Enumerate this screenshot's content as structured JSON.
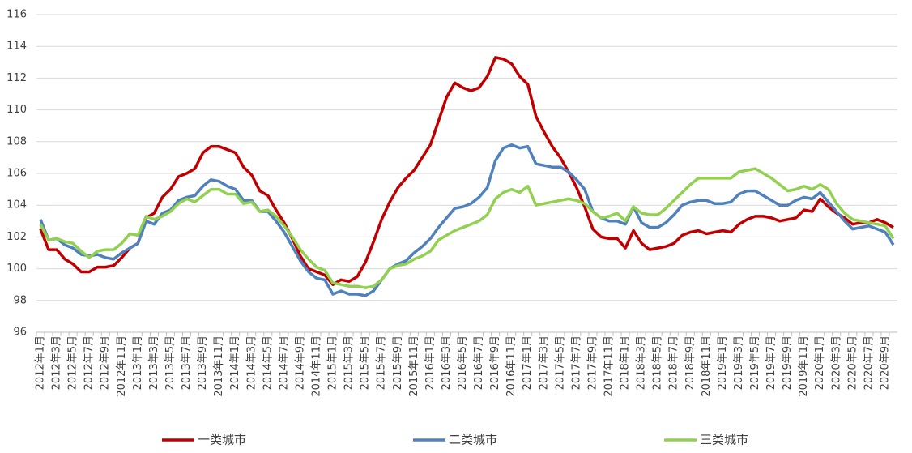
{
  "chart_data": {
    "type": "line",
    "categories": [
      "2012年1月",
      null,
      "2012年3月",
      null,
      "2012年5月",
      null,
      "2012年7月",
      null,
      "2012年9月",
      null,
      "2012年11月",
      null,
      "2013年1月",
      null,
      "2013年3月",
      null,
      "2013年5月",
      null,
      "2013年7月",
      null,
      "2013年9月",
      null,
      "2013年11月",
      null,
      "2014年1月",
      null,
      "2014年3月",
      null,
      "2014年5月",
      null,
      "2014年7月",
      null,
      "2014年9月",
      null,
      "2014年11月",
      null,
      "2015年1月",
      null,
      "2015年3月",
      null,
      "2015年5月",
      null,
      "2015年7月",
      null,
      "2015年9月",
      null,
      "2015年11月",
      null,
      "2016年1月",
      null,
      "2016年3月",
      null,
      "2016年5月",
      null,
      "2016年7月",
      null,
      "2016年9月",
      null,
      "2016年11月",
      null,
      "2017年1月",
      null,
      "2017年3月",
      null,
      "2017年5月",
      null,
      "2017年7月",
      null,
      "2017年9月",
      null,
      "2017年11月",
      null,
      "2018年1月",
      null,
      "2018年3月",
      null,
      "2018年5月",
      null,
      "2018年7月",
      null,
      "2018年9月",
      null,
      "2018年11月",
      null,
      "2019年1月",
      null,
      "2019年3月",
      null,
      "2019年5月",
      null,
      "2019年7月",
      null,
      "2019年9月",
      null,
      "2019年11月",
      null,
      "2020年1月",
      null,
      "2020年3月",
      null,
      "2020年5月",
      null,
      "2020年7月",
      null,
      "2020年9月",
      null
    ],
    "series": [
      {
        "name": "一类城市",
        "color": "#c00000",
        "values": [
          102.5,
          101.2,
          101.2,
          100.6,
          100.3,
          99.8,
          99.8,
          100.1,
          100.1,
          100.2,
          100.7,
          101.3,
          101.6,
          103.2,
          103.5,
          104.5,
          105.0,
          105.8,
          106.0,
          106.3,
          107.3,
          107.7,
          107.7,
          107.5,
          107.3,
          106.4,
          105.9,
          104.9,
          104.6,
          103.7,
          102.9,
          101.9,
          100.8,
          100.0,
          99.8,
          99.6,
          99.0,
          99.3,
          99.2,
          99.5,
          100.4,
          101.7,
          103.1,
          104.2,
          105.1,
          105.7,
          106.2,
          107.0,
          107.8,
          109.3,
          110.8,
          111.7,
          111.4,
          111.2,
          111.4,
          112.1,
          113.3,
          113.2,
          112.9,
          112.1,
          111.6,
          109.6,
          108.6,
          107.7,
          107.0,
          106.1,
          105.1,
          103.9,
          102.5,
          102.0,
          101.9,
          101.9,
          101.3,
          102.4,
          101.6,
          101.2,
          101.3,
          101.4,
          101.6,
          102.1,
          102.3,
          102.4,
          102.2,
          102.3,
          102.4,
          102.3,
          102.8,
          103.1,
          103.3,
          103.3,
          103.2,
          103.0,
          103.1,
          103.2,
          103.7,
          103.6,
          104.4,
          103.9,
          103.5,
          103.2,
          102.8,
          102.9,
          102.9,
          103.1,
          102.9,
          102.6
        ]
      },
      {
        "name": "二类城市",
        "color": "#4f81bd",
        "values": [
          103.1,
          101.8,
          101.9,
          101.5,
          101.3,
          100.9,
          100.8,
          100.9,
          100.7,
          100.6,
          101.0,
          101.3,
          101.6,
          103.0,
          102.8,
          103.5,
          103.7,
          104.3,
          104.5,
          104.6,
          105.2,
          105.6,
          105.5,
          105.2,
          105.0,
          104.3,
          104.3,
          103.6,
          103.6,
          103.0,
          102.3,
          101.4,
          100.5,
          99.8,
          99.4,
          99.3,
          98.4,
          98.6,
          98.4,
          98.4,
          98.3,
          98.6,
          99.3,
          100.0,
          100.3,
          100.5,
          101.0,
          101.4,
          101.9,
          102.6,
          103.2,
          103.8,
          103.9,
          104.1,
          104.5,
          105.1,
          106.8,
          107.6,
          107.8,
          107.6,
          107.7,
          106.6,
          106.5,
          106.4,
          106.4,
          106.1,
          105.6,
          105.0,
          103.6,
          103.2,
          103.0,
          103.0,
          102.8,
          103.9,
          102.9,
          102.6,
          102.6,
          102.9,
          103.4,
          104.0,
          104.2,
          104.3,
          104.3,
          104.1,
          104.1,
          104.2,
          104.7,
          104.9,
          104.9,
          104.6,
          104.3,
          104.0,
          104.0,
          104.3,
          104.5,
          104.4,
          104.8,
          104.2,
          103.6,
          103.0,
          102.5,
          102.6,
          102.7,
          102.5,
          102.3,
          101.5
        ]
      },
      {
        "name": "三类城市",
        "color": "#92d050",
        "values": [
          102.8,
          101.8,
          101.9,
          101.7,
          101.6,
          101.1,
          100.7,
          101.1,
          101.2,
          101.2,
          101.6,
          102.2,
          102.1,
          103.3,
          103.1,
          103.3,
          103.6,
          104.1,
          104.4,
          104.2,
          104.6,
          105.0,
          105.0,
          104.7,
          104.7,
          104.1,
          104.2,
          103.6,
          103.7,
          103.3,
          102.7,
          102.0,
          101.2,
          100.6,
          100.1,
          99.9,
          99.1,
          99.0,
          98.9,
          98.9,
          98.8,
          98.9,
          99.3,
          100.0,
          100.2,
          100.3,
          100.6,
          100.8,
          101.1,
          101.8,
          102.1,
          102.4,
          102.6,
          102.8,
          103.0,
          103.4,
          104.4,
          104.8,
          105.0,
          104.8,
          105.2,
          104.0,
          104.1,
          104.2,
          104.3,
          104.4,
          104.3,
          104.1,
          103.6,
          103.2,
          103.3,
          103.5,
          103.0,
          103.9,
          103.5,
          103.4,
          103.4,
          103.8,
          104.3,
          104.8,
          105.3,
          105.7,
          105.7,
          105.7,
          105.7,
          105.7,
          106.1,
          106.2,
          106.3,
          106.0,
          105.7,
          105.3,
          104.9,
          105.0,
          105.2,
          105.0,
          105.3,
          105.0,
          104.1,
          103.5,
          103.1,
          103.0,
          102.9,
          102.8,
          102.7,
          101.9
        ]
      }
    ],
    "ylim": [
      96,
      116
    ],
    "yticks": [
      96,
      98,
      100,
      102,
      104,
      106,
      108,
      110,
      112,
      114,
      116
    ],
    "grid": true,
    "legend": "bottom"
  }
}
